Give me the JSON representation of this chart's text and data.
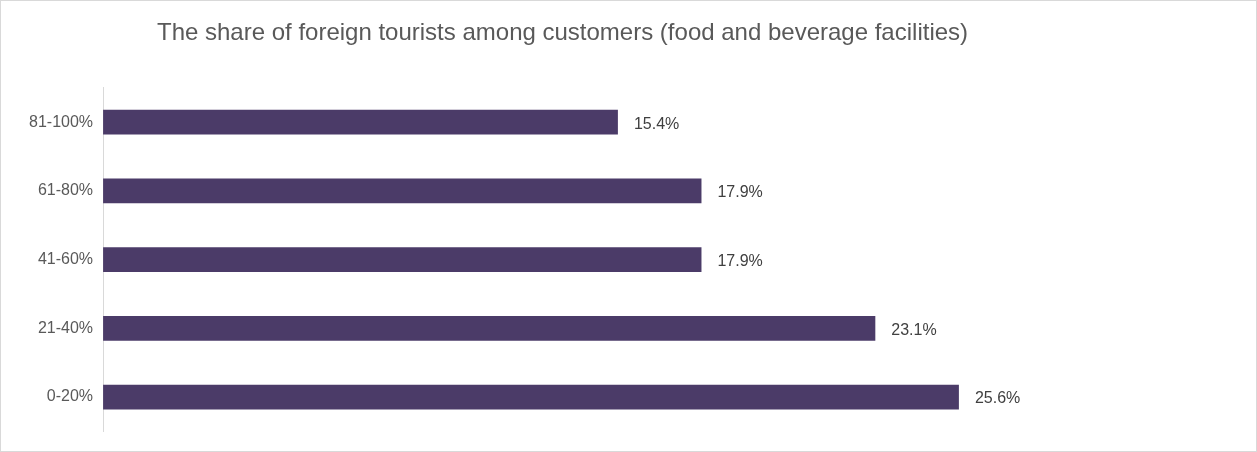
{
  "chart_data": {
    "type": "bar",
    "orientation": "horizontal",
    "title": "The share of foreign tourists among customers (food and beverage facilities)",
    "categories": [
      "81-100%",
      "61-80%",
      "41-60%",
      "21-40%",
      "0-20%"
    ],
    "values": [
      15.4,
      17.9,
      17.9,
      23.1,
      25.6
    ],
    "value_labels": [
      "15.4%",
      "17.9%",
      "17.9%",
      "23.1%",
      "25.6%"
    ],
    "color": "#4b3b68",
    "tick_labels": "y"
  }
}
